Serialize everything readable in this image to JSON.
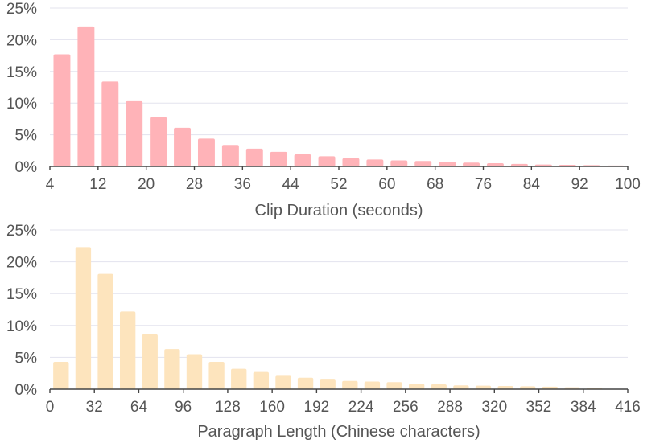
{
  "chart_data": [
    {
      "type": "bar",
      "xlabel": "Clip Duration (seconds)",
      "ylabel": "",
      "ylim": [
        0,
        25
      ],
      "yticks": [
        "0%",
        "5%",
        "10%",
        "15%",
        "20%",
        "25%"
      ],
      "xticks": [
        "4",
        "12",
        "20",
        "28",
        "36",
        "44",
        "52",
        "60",
        "68",
        "76",
        "84",
        "92",
        "100"
      ],
      "x_range": [
        4,
        100
      ],
      "bin_width": 4,
      "bar_color": "#ffb3b8",
      "grid": true,
      "x": [
        6,
        10,
        14,
        18,
        22,
        26,
        30,
        34,
        38,
        42,
        46,
        50,
        54,
        58,
        62,
        66,
        70,
        74,
        78,
        82,
        86,
        90,
        94,
        98
      ],
      "values": [
        17.7,
        22.1,
        13.4,
        10.3,
        7.8,
        6.1,
        4.4,
        3.4,
        2.8,
        2.3,
        1.9,
        1.6,
        1.3,
        1.1,
        0.95,
        0.85,
        0.75,
        0.6,
        0.5,
        0.4,
        0.3,
        0.25,
        0.2,
        0.15
      ]
    },
    {
      "type": "bar",
      "xlabel": "Paragraph Length (Chinese characters)",
      "ylabel": "",
      "ylim": [
        0,
        25
      ],
      "yticks": [
        "0%",
        "5%",
        "10%",
        "15%",
        "20%",
        "25%"
      ],
      "xticks": [
        "0",
        "32",
        "64",
        "96",
        "128",
        "160",
        "192",
        "224",
        "256",
        "288",
        "320",
        "352",
        "384",
        "416"
      ],
      "x_range": [
        0,
        416
      ],
      "bin_width": 16,
      "bar_color": "#fde4bd",
      "grid": true,
      "x": [
        8,
        24,
        40,
        56,
        72,
        88,
        104,
        120,
        136,
        152,
        168,
        184,
        200,
        216,
        232,
        248,
        264,
        280,
        296,
        312,
        328,
        344,
        360,
        376,
        392
      ],
      "values": [
        4.3,
        22.3,
        18.1,
        12.2,
        8.6,
        6.3,
        5.5,
        4.3,
        3.2,
        2.7,
        2.1,
        1.8,
        1.5,
        1.3,
        1.2,
        1.1,
        0.85,
        0.75,
        0.6,
        0.55,
        0.5,
        0.45,
        0.4,
        0.3,
        0.25
      ]
    }
  ]
}
